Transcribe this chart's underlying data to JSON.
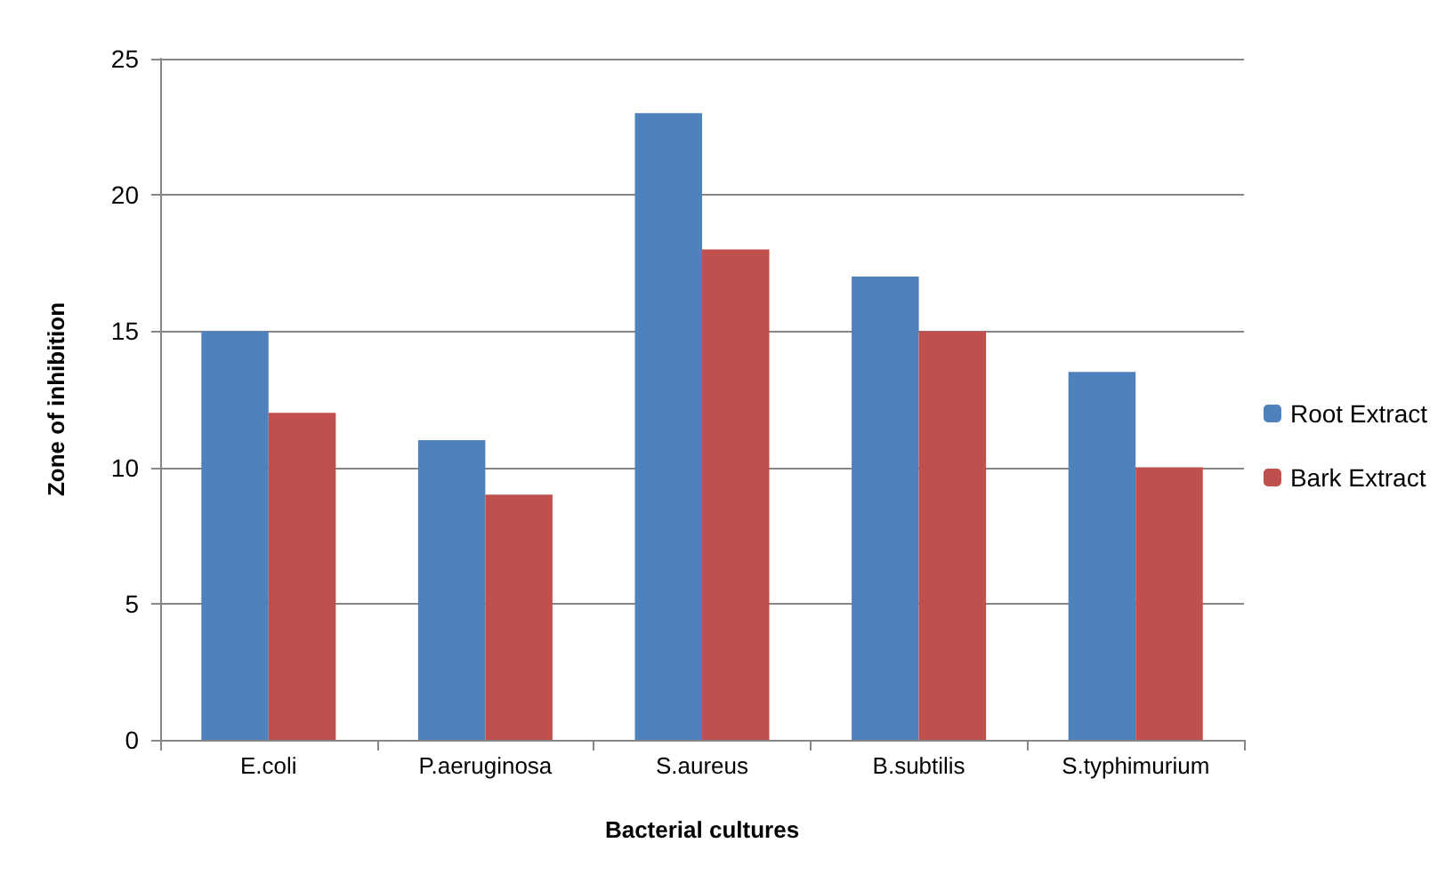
{
  "chart_data": {
    "type": "bar",
    "xlabel": "Bacterial cultures",
    "ylabel": "Zone of inhibition",
    "categories": [
      "E.coli",
      "P.aeruginosa",
      "S.aureus",
      "B.subtilis",
      "S.typhimurium"
    ],
    "series": [
      {
        "name": "Root Extract",
        "color": "#4f81bd",
        "values": [
          15,
          11,
          23,
          17,
          13.5
        ]
      },
      {
        "name": "Bark Extract",
        "color": "#c0504d",
        "values": [
          12,
          9,
          18,
          15,
          10
        ]
      }
    ],
    "ylim": [
      0,
      25
    ],
    "yticks": [
      0,
      5,
      10,
      15,
      20,
      25
    ],
    "grid": "y",
    "legend": "right"
  }
}
